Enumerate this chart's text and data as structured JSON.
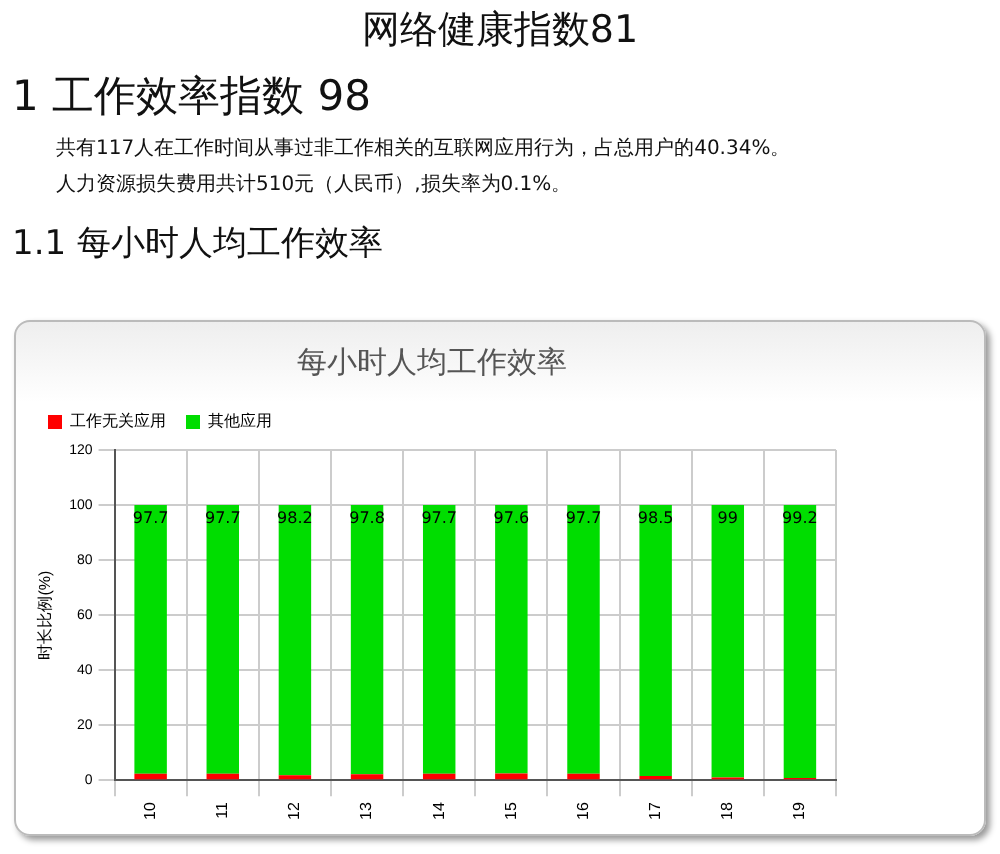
{
  "chart_data": {
    "type": "bar",
    "title": "每小时人均工作效率",
    "annotations": [
      "网络健康指数81",
      "1 工作效率指数 98",
      "共有117人在工作时间从事过非工作相关的互联网应用行为，占总用户的40.34%。",
      "人力资源损失费用共计510元（人民币）,损失率为0.1%。",
      "1.1 每小时人均工作效率"
    ],
    "ylabel": "时长比例(%)",
    "categories": [
      "10",
      "11",
      "12",
      "13",
      "14",
      "15",
      "16",
      "17",
      "18",
      "19"
    ],
    "stacked": true,
    "series": [
      {
        "name": "工作无关应用",
        "color": "#ff0000",
        "values": [
          2.3,
          2.3,
          1.8,
          2.2,
          2.3,
          2.4,
          2.3,
          1.5,
          1.0,
          0.8
        ]
      },
      {
        "name": "其他应用",
        "color": "#00dd00",
        "values": [
          97.7,
          97.7,
          98.2,
          97.8,
          97.7,
          97.6,
          97.7,
          98.5,
          99,
          99.2
        ],
        "value_labels": [
          "97.7",
          "97.7",
          "98.2",
          "97.8",
          "97.7",
          "97.6",
          "97.7",
          "98.5",
          "99",
          "99.2"
        ]
      }
    ],
    "ylim": [
      0,
      120
    ],
    "yticks": [
      0,
      20,
      40,
      60,
      80,
      100,
      120
    ],
    "grid": true,
    "legend": "top left"
  }
}
